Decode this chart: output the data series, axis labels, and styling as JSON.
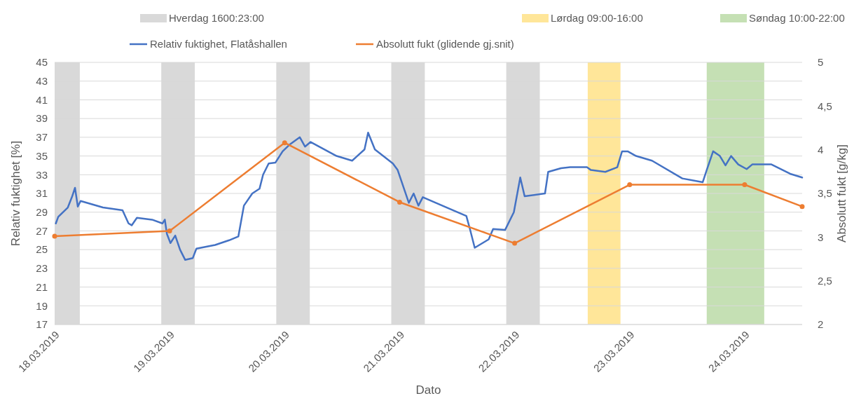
{
  "chart_data": {
    "type": "line",
    "xlabel": "Dato",
    "ylabel": "Relativ fuktighet [%]",
    "y2label": "Absolutt fukt [g/kg]",
    "xlim": [
      "2019-03-18T00:00",
      "2019-03-24T12:00"
    ],
    "xticks": [
      {
        "value": "2019-03-18T00:00",
        "label": "18.03.2019"
      },
      {
        "value": "2019-03-19T00:00",
        "label": "19.03.2019"
      },
      {
        "value": "2019-03-20T00:00",
        "label": "20.03.2019"
      },
      {
        "value": "2019-03-21T00:00",
        "label": "21.03.2019"
      },
      {
        "value": "2019-03-22T00:00",
        "label": "22.03.2019"
      },
      {
        "value": "2019-03-23T00:00",
        "label": "23.03.2019"
      },
      {
        "value": "2019-03-24T00:00",
        "label": "24.03.2019"
      }
    ],
    "ylim": [
      17,
      45
    ],
    "yticks": [
      17,
      19,
      21,
      23,
      25,
      27,
      29,
      31,
      33,
      35,
      37,
      39,
      41,
      43,
      45
    ],
    "y2lim": [
      2,
      5
    ],
    "y2ticks": [
      2,
      {
        "value": 2.5,
        "label": "2,5"
      },
      3,
      {
        "value": 3.5,
        "label": "3,5"
      },
      4,
      {
        "value": 4.5,
        "label": "4,5"
      },
      5
    ],
    "grid": "y",
    "legend": "top",
    "bands": [
      {
        "axis": "x",
        "from": "2019-03-18T00:00",
        "to": "2019-03-18T05:15",
        "label": "Hverdag 1600:23:00",
        "color": "#d9d9d9"
      },
      {
        "axis": "x",
        "from": "2019-03-18T22:15",
        "to": "2019-03-19T05:15",
        "color": "#d9d9d9"
      },
      {
        "axis": "x",
        "from": "2019-03-19T22:15",
        "to": "2019-03-20T05:15",
        "color": "#d9d9d9"
      },
      {
        "axis": "x",
        "from": "2019-03-20T22:15",
        "to": "2019-03-21T05:15",
        "color": "#d9d9d9"
      },
      {
        "axis": "x",
        "from": "2019-03-21T22:15",
        "to": "2019-03-22T05:15",
        "color": "#d9d9d9"
      },
      {
        "axis": "x",
        "from": "2019-03-22T15:15",
        "to": "2019-03-22T22:05",
        "label": "Lørdag 09:00-16:00",
        "color": "#ffe699"
      },
      {
        "axis": "x",
        "from": "2019-03-23T16:05",
        "to": "2019-03-24T04:05",
        "label": "Søndag 10:00-22:00",
        "color": "#c5e0b4"
      }
    ],
    "series": [
      {
        "name": "Relativ fuktighet, Flatåshallen",
        "color": "#4472c4",
        "marker": "none",
        "x": [
          "2019-03-18T00:15",
          "2019-03-18T00:45",
          "2019-03-18T02:45",
          "2019-03-18T03:40",
          "2019-03-18T04:15",
          "2019-03-18T04:50",
          "2019-03-18T05:25",
          "2019-03-18T10:05",
          "2019-03-18T14:10",
          "2019-03-18T15:25",
          "2019-03-18T16:05",
          "2019-03-18T17:10",
          "2019-03-18T20:20",
          "2019-03-18T22:30",
          "2019-03-18T23:00",
          "2019-03-18T23:25",
          "2019-03-19T00:10",
          "2019-03-19T01:10",
          "2019-03-19T02:10",
          "2019-03-19T03:15",
          "2019-03-19T04:50",
          "2019-03-19T05:35",
          "2019-03-19T09:30",
          "2019-03-19T12:25",
          "2019-03-19T14:20",
          "2019-03-19T15:30",
          "2019-03-19T17:15",
          "2019-03-19T18:45",
          "2019-03-19T19:30",
          "2019-03-19T20:40",
          "2019-03-19T22:05",
          "2019-03-19T23:35",
          "2019-03-20T01:00",
          "2019-03-20T03:10",
          "2019-03-20T04:15",
          "2019-03-20T05:25",
          "2019-03-20T10:50",
          "2019-03-20T14:05",
          "2019-03-20T16:40",
          "2019-03-20T17:25",
          "2019-03-20T18:50",
          "2019-03-20T22:35",
          "2019-03-20T23:35",
          "2019-03-21T01:55",
          "2019-03-21T02:55",
          "2019-03-21T03:55",
          "2019-03-21T04:50",
          "2019-03-21T10:15",
          "2019-03-21T13:55",
          "2019-03-21T14:40",
          "2019-03-21T15:40",
          "2019-03-21T18:35",
          "2019-03-21T19:30",
          "2019-03-21T22:00",
          "2019-03-21T23:50",
          "2019-03-22T01:10",
          "2019-03-22T02:05",
          "2019-03-22T06:20",
          "2019-03-22T07:00",
          "2019-03-22T09:40",
          "2019-03-22T11:35",
          "2019-03-22T15:05",
          "2019-03-22T15:55",
          "2019-03-22T18:55",
          "2019-03-22T21:25",
          "2019-03-22T22:25",
          "2019-03-22T23:35",
          "2019-03-23T01:20",
          "2019-03-23T04:40",
          "2019-03-23T11:00",
          "2019-03-23T15:15",
          "2019-03-23T16:05",
          "2019-03-23T17:25",
          "2019-03-23T18:50",
          "2019-03-23T20:00",
          "2019-03-23T21:10",
          "2019-03-23T22:40",
          "2019-03-24T00:25",
          "2019-03-24T01:35",
          "2019-03-24T05:35",
          "2019-03-24T09:30",
          "2019-03-24T12:00"
        ],
        "values": [
          27.8,
          28.5,
          29.5,
          30.7,
          31.6,
          29.6,
          30.2,
          29.5,
          29.2,
          27.8,
          27.6,
          28.4,
          28.2,
          27.8,
          28.2,
          26.7,
          25.7,
          26.5,
          25.0,
          23.9,
          24.1,
          25.1,
          25.5,
          26.0,
          26.4,
          29.7,
          31.0,
          31.5,
          33.0,
          34.2,
          34.3,
          35.5,
          36.2,
          37.0,
          36.0,
          36.5,
          35.0,
          34.5,
          35.7,
          37.5,
          35.7,
          34.2,
          33.5,
          30.0,
          31.0,
          29.7,
          30.6,
          29.4,
          28.6,
          27.2,
          25.2,
          26.1,
          27.2,
          27.1,
          29.0,
          32.7,
          30.7,
          31.0,
          33.3,
          33.7,
          33.8,
          33.8,
          33.5,
          33.3,
          33.8,
          35.5,
          35.5,
          35.0,
          34.5,
          32.6,
          32.2,
          33.5,
          35.5,
          35.0,
          34.0,
          35.0,
          34.1,
          33.6,
          34.1,
          34.1,
          33.1,
          32.7
        ]
      },
      {
        "name": "Absolutt fukt (glidende gj.snit)",
        "color": "#ed7d31",
        "axis": "y2",
        "marker": "circle",
        "x": [
          "2019-03-18T00:00",
          "2019-03-19T00:00",
          "2019-03-20T00:00",
          "2019-03-21T00:00",
          "2019-03-22T00:00",
          "2019-03-23T00:00",
          "2019-03-24T00:00",
          "2019-03-24T12:00"
        ],
        "values": [
          3.01,
          3.07,
          4.08,
          3.4,
          2.93,
          3.6,
          3.6,
          3.35
        ]
      }
    ]
  }
}
